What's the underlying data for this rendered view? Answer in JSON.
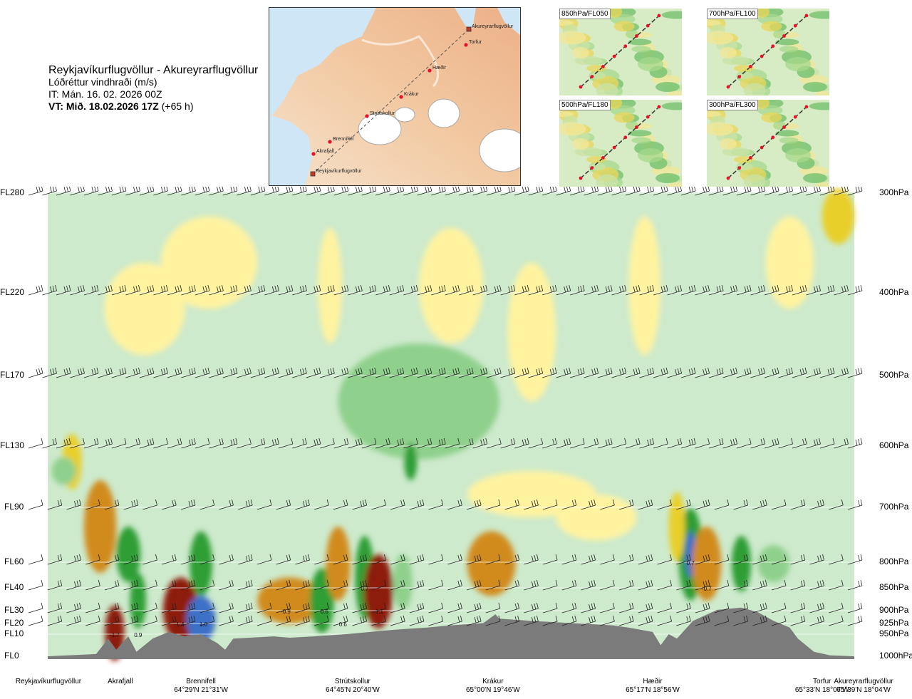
{
  "header": {
    "route": "Reykjavíkurflugvöllur - Akureyrarflugvöllur",
    "product": "Lóðréttur vindhraði (m/s)",
    "issue_time": "IT: Mán. 16. 02. 2026 00Z",
    "valid_label": "VT: Mið. 18.02.2026 17Z",
    "valid_offset": "(+65 h)"
  },
  "map": {
    "waypoints": [
      "Akureyrarflugvöllur",
      "Torfur",
      "Hæðir",
      "Krákur",
      "Strútskollur",
      "Brennifell",
      "Akrafjall",
      "Reykjavíkurflugvöllur"
    ]
  },
  "mini_maps": [
    {
      "label": "850hPa/FL050"
    },
    {
      "label": "700hPa/FL100"
    },
    {
      "label": "500hPa/FL180"
    },
    {
      "label": "300hPa/FL300"
    }
  ],
  "chart_data": {
    "type": "heatmap",
    "title": "Lóðréttur vindhraði (m/s)",
    "colors": {
      "pos_weak": "#fff3a0",
      "pos_mod": "#e9cf2a",
      "pos_str": "#d18b1a",
      "pos_vstr": "#8e1a10",
      "neg_weak": "#cdeacc",
      "neg_mod": "#8fd08c",
      "neg_str": "#2f9e34",
      "neg_vstr": "#3d6fc7",
      "terrain": "#7b7b7b"
    },
    "levels_left": [
      {
        "label": "FL280",
        "hpa": 300
      },
      {
        "label": "FL220",
        "hpa": 400
      },
      {
        "label": "FL170",
        "hpa": 500
      },
      {
        "label": "FL130",
        "hpa": 600
      },
      {
        "label": "FL90",
        "hpa": 700
      },
      {
        "label": "FL60",
        "hpa": 800
      },
      {
        "label": "FL40",
        "hpa": 850
      },
      {
        "label": "FL30",
        "hpa": 900
      },
      {
        "label": "FL20",
        "hpa": 925
      },
      {
        "label": "FL10",
        "hpa": 950
      },
      {
        "label": "FL0",
        "hpa": 1000
      }
    ],
    "levels_right": [
      "300hPa",
      "400hPa",
      "500hPa",
      "600hPa",
      "700hPa",
      "800hPa",
      "850hPa",
      "900hPa",
      "925hPa",
      "950hPa",
      "1000hPa"
    ],
    "locations": [
      {
        "name": "Reykjavíkurflugvöllur",
        "coord": "",
        "frac": 0.0
      },
      {
        "name": "Akrafjall",
        "coord": "",
        "frac": 0.09
      },
      {
        "name": "Brennifell",
        "coord": "64°29'N 21°31'W",
        "frac": 0.19
      },
      {
        "name": "Strútskollur",
        "coord": "64°45'N 20°40'W",
        "frac": 0.378
      },
      {
        "name": "Krákur",
        "coord": "65°00'N 19°46'W",
        "frac": 0.552
      },
      {
        "name": "Hæðir",
        "coord": "65°17'N 18°56'W",
        "frac": 0.75
      },
      {
        "name": "Torfur",
        "coord": "65°33'N 18°07'W",
        "frac": 0.96
      },
      {
        "name": "Akureyrarflugvöllur",
        "coord": "65°39'N 18°04'W",
        "frac": 1.0
      }
    ],
    "value_labels": [
      {
        "text": "-1.7",
        "frac": 0.083,
        "hpa": 950
      },
      {
        "text": "0.9",
        "frac": 0.112,
        "hpa": 950
      },
      {
        "text": "-1.4",
        "frac": 0.163,
        "hpa": 925
      },
      {
        "text": "1.0",
        "frac": 0.193,
        "hpa": 925
      },
      {
        "text": "-0.9",
        "frac": 0.295,
        "hpa": 900
      },
      {
        "text": "0.6",
        "frac": 0.343,
        "hpa": 900
      },
      {
        "text": "0.6",
        "frac": 0.366,
        "hpa": 925
      },
      {
        "text": "0.7",
        "frac": 0.393,
        "hpa": 850
      },
      {
        "text": "-1.1",
        "frac": 0.41,
        "hpa": 900
      },
      {
        "text": "0.7",
        "frac": 0.797,
        "hpa": 800
      },
      {
        "text": "-0.7",
        "frac": 0.817,
        "hpa": 850
      }
    ]
  }
}
